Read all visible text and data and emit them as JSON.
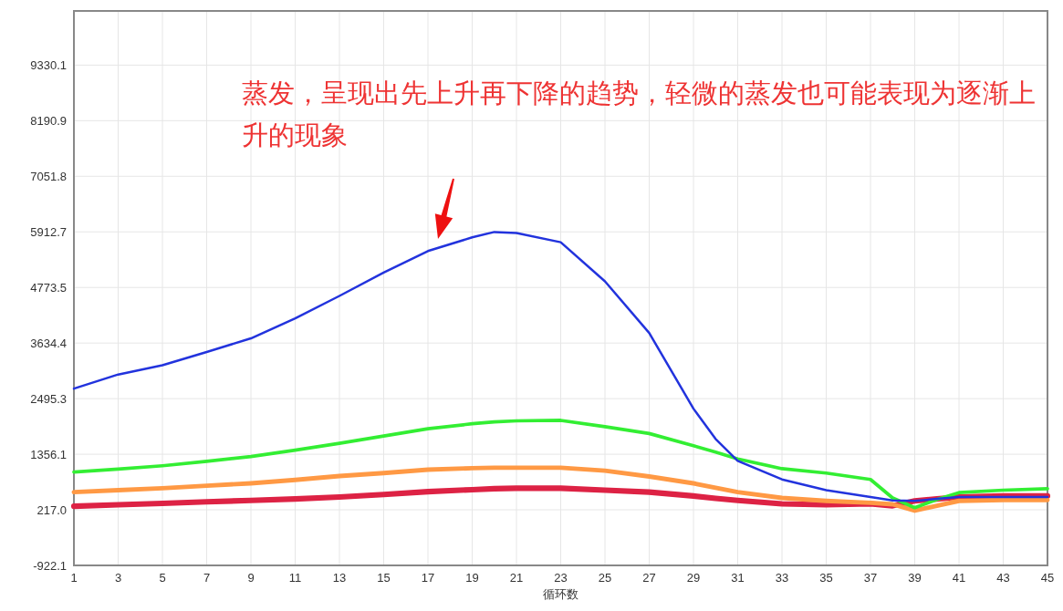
{
  "chart_data": {
    "type": "line",
    "xlabel": "循环数",
    "x": [
      1,
      3,
      5,
      7,
      9,
      11,
      13,
      15,
      17,
      19,
      20,
      21,
      23,
      25,
      27,
      29,
      30,
      31,
      33,
      35,
      37,
      38,
      39,
      40,
      41,
      43,
      45
    ],
    "xlim": [
      1,
      45
    ],
    "xticks": [
      1,
      3,
      5,
      7,
      9,
      11,
      13,
      15,
      17,
      19,
      21,
      23,
      25,
      27,
      29,
      31,
      33,
      35,
      37,
      39,
      41,
      43,
      45
    ],
    "ylim": [
      -922.1,
      10440
    ],
    "yticks": [
      -922.1,
      {
        "value": 217,
        "label": "217.0"
      },
      1356.1,
      2495.3,
      3634.4,
      4773.5,
      5912.7,
      7051.8,
      8190.9,
      9330.1
    ],
    "grid": true,
    "marker": "none",
    "line_style": "solid",
    "series": [
      {
        "color": "#2233dd",
        "values": [
          2700,
          2990,
          3180,
          3450,
          3730,
          4140,
          4600,
          5080,
          5520,
          5800,
          5910,
          5890,
          5700,
          4900,
          3840,
          2290,
          1670,
          1220,
          840,
          620,
          480,
          410,
          400,
          440,
          480,
          480,
          480
        ]
      },
      {
        "color": "#33ee33",
        "values": [
          990,
          1050,
          1120,
          1210,
          1310,
          1440,
          1580,
          1730,
          1880,
          1980,
          2020,
          2040,
          2050,
          1920,
          1780,
          1530,
          1400,
          1260,
          1060,
          970,
          840,
          460,
          260,
          430,
          570,
          620,
          650
        ]
      },
      {
        "color": "#ff9944",
        "values": [
          580,
          620,
          660,
          710,
          760,
          830,
          910,
          970,
          1040,
          1070,
          1080,
          1080,
          1080,
          1020,
          900,
          760,
          670,
          580,
          460,
          400,
          360,
          330,
          200,
          300,
          400,
          420,
          420
        ]
      },
      {
        "color": "#dd2244",
        "values": [
          290,
          320,
          350,
          380,
          410,
          440,
          480,
          530,
          590,
          630,
          650,
          660,
          660,
          620,
          580,
          500,
          450,
          410,
          340,
          320,
          340,
          300,
          400,
          440,
          480,
          500,
          500
        ]
      }
    ],
    "annotations": [
      "蒸发，呈现出先上升再下降的趋势，轻微的蒸发也可能表现为逐渐上升的现象"
    ]
  }
}
